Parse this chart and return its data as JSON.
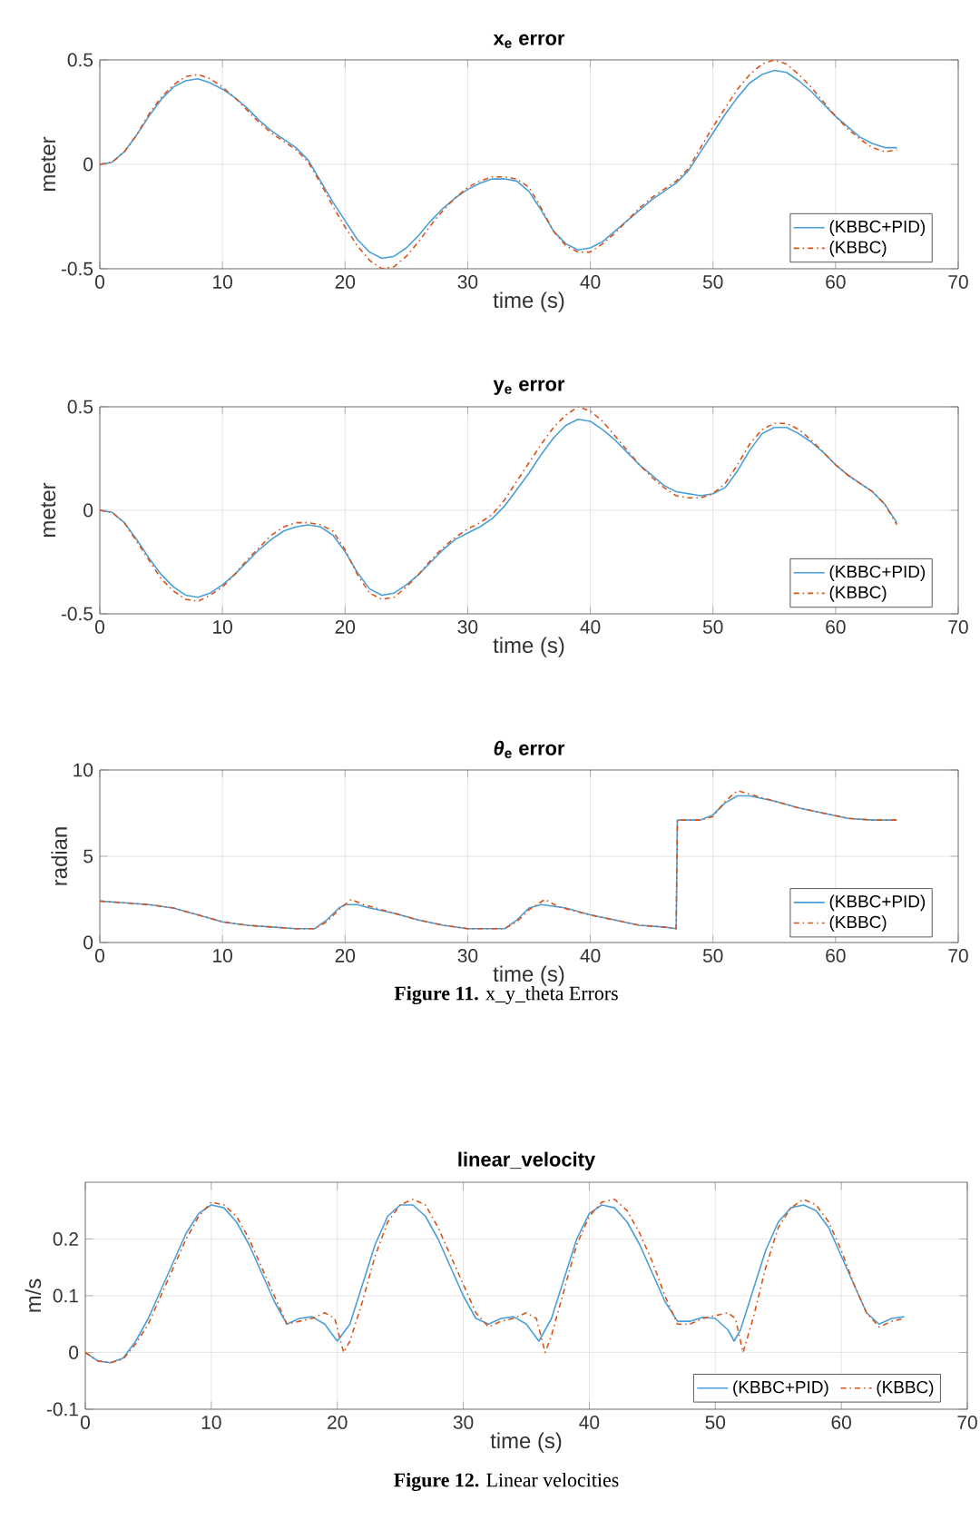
{
  "chart_data": [
    {
      "type": "line",
      "title": "x$_{e}$ error",
      "xlabel": "time (s)",
      "ylabel": "meter",
      "xlim": [
        0,
        70
      ],
      "ylim": [
        -0.5,
        0.5
      ],
      "xticks": [
        0,
        10,
        20,
        30,
        40,
        50,
        60,
        70
      ],
      "yticks": [
        -0.5,
        0,
        0.5
      ],
      "grid": true,
      "legend": "bottom right",
      "series": [
        {
          "name": "(KBBC+PID)",
          "color": "#4a9fd8",
          "line_style": "solid",
          "x": [
            0,
            1,
            2,
            3,
            4,
            5,
            6,
            7,
            8,
            9,
            10,
            11,
            12,
            13,
            14,
            15,
            16,
            17,
            18,
            19,
            20,
            21,
            22,
            23,
            24,
            25,
            26,
            27,
            28,
            29,
            30,
            31,
            32,
            33,
            34,
            35,
            36,
            37,
            38,
            39,
            40,
            41,
            42,
            43,
            44,
            45,
            46,
            47,
            48,
            49,
            50,
            51,
            52,
            53,
            54,
            55,
            56,
            57,
            58,
            59,
            60,
            61,
            62,
            63,
            64,
            65
          ],
          "values": [
            0,
            0.01,
            0.06,
            0.14,
            0.23,
            0.31,
            0.37,
            0.4,
            0.41,
            0.39,
            0.36,
            0.32,
            0.27,
            0.21,
            0.16,
            0.12,
            0.08,
            0.02,
            -0.08,
            -0.18,
            -0.27,
            -0.36,
            -0.42,
            -0.45,
            -0.44,
            -0.4,
            -0.34,
            -0.27,
            -0.21,
            -0.16,
            -0.12,
            -0.09,
            -0.07,
            -0.07,
            -0.08,
            -0.13,
            -0.22,
            -0.32,
            -0.38,
            -0.41,
            -0.4,
            -0.37,
            -0.32,
            -0.27,
            -0.22,
            -0.17,
            -0.13,
            -0.09,
            -0.03,
            0.06,
            0.15,
            0.24,
            0.32,
            0.39,
            0.43,
            0.45,
            0.44,
            0.4,
            0.35,
            0.29,
            0.23,
            0.18,
            0.13,
            0.1,
            0.08,
            0.08
          ]
        },
        {
          "name": "(KBBC)",
          "color": "#d95319",
          "line_style": "dashdot",
          "x": [
            0,
            1,
            2,
            3,
            4,
            5,
            6,
            7,
            8,
            9,
            10,
            11,
            12,
            13,
            14,
            15,
            16,
            17,
            18,
            19,
            20,
            21,
            22,
            23,
            24,
            25,
            26,
            27,
            28,
            29,
            30,
            31,
            32,
            33,
            34,
            35,
            36,
            37,
            38,
            39,
            40,
            41,
            42,
            43,
            44,
            45,
            46,
            47,
            48,
            49,
            50,
            51,
            52,
            53,
            54,
            55,
            56,
            57,
            58,
            59,
            60,
            61,
            62,
            63,
            64,
            65
          ],
          "values": [
            0,
            0.01,
            0.06,
            0.14,
            0.24,
            0.32,
            0.38,
            0.42,
            0.43,
            0.41,
            0.37,
            0.32,
            0.26,
            0.2,
            0.15,
            0.11,
            0.07,
            0.01,
            -0.09,
            -0.2,
            -0.3,
            -0.39,
            -0.46,
            -0.5,
            -0.49,
            -0.44,
            -0.37,
            -0.29,
            -0.22,
            -0.16,
            -0.11,
            -0.08,
            -0.06,
            -0.06,
            -0.07,
            -0.11,
            -0.21,
            -0.32,
            -0.39,
            -0.42,
            -0.42,
            -0.38,
            -0.33,
            -0.27,
            -0.21,
            -0.16,
            -0.12,
            -0.08,
            -0.02,
            0.08,
            0.18,
            0.27,
            0.36,
            0.43,
            0.48,
            0.5,
            0.48,
            0.43,
            0.37,
            0.3,
            0.23,
            0.17,
            0.12,
            0.08,
            0.06,
            0.07
          ]
        }
      ]
    },
    {
      "type": "line",
      "title": "y$_{e}$ error",
      "xlabel": "time (s)",
      "ylabel": "meter",
      "xlim": [
        0,
        70
      ],
      "ylim": [
        -0.5,
        0.5
      ],
      "xticks": [
        0,
        10,
        20,
        30,
        40,
        50,
        60,
        70
      ],
      "yticks": [
        -0.5,
        0,
        0.5
      ],
      "grid": true,
      "legend": "bottom right",
      "series": [
        {
          "name": "(KBBC+PID)",
          "color": "#4a9fd8",
          "line_style": "solid",
          "x": [
            0,
            1,
            2,
            3,
            4,
            5,
            6,
            7,
            8,
            9,
            10,
            11,
            12,
            13,
            14,
            15,
            16,
            17,
            18,
            19,
            20,
            21,
            22,
            23,
            24,
            25,
            26,
            27,
            28,
            29,
            30,
            31,
            32,
            33,
            34,
            35,
            36,
            37,
            38,
            39,
            40,
            41,
            42,
            43,
            44,
            45,
            46,
            47,
            48,
            49,
            50,
            51,
            52,
            53,
            54,
            55,
            56,
            57,
            58,
            59,
            60,
            61,
            62,
            63,
            64,
            65
          ],
          "values": [
            0,
            -0.01,
            -0.06,
            -0.14,
            -0.23,
            -0.31,
            -0.37,
            -0.41,
            -0.42,
            -0.4,
            -0.36,
            -0.31,
            -0.25,
            -0.19,
            -0.14,
            -0.1,
            -0.08,
            -0.07,
            -0.08,
            -0.12,
            -0.2,
            -0.3,
            -0.38,
            -0.41,
            -0.4,
            -0.36,
            -0.31,
            -0.25,
            -0.19,
            -0.14,
            -0.11,
            -0.08,
            -0.04,
            0.02,
            0.1,
            0.18,
            0.27,
            0.35,
            0.41,
            0.44,
            0.43,
            0.39,
            0.34,
            0.28,
            0.22,
            0.17,
            0.12,
            0.09,
            0.08,
            0.07,
            0.08,
            0.11,
            0.19,
            0.29,
            0.37,
            0.4,
            0.4,
            0.37,
            0.33,
            0.28,
            0.22,
            0.17,
            0.13,
            0.09,
            0.03,
            -0.06
          ]
        },
        {
          "name": "(KBBC)",
          "color": "#d95319",
          "line_style": "dashdot",
          "x": [
            0,
            1,
            2,
            3,
            4,
            5,
            6,
            7,
            8,
            9,
            10,
            11,
            12,
            13,
            14,
            15,
            16,
            17,
            18,
            19,
            20,
            21,
            22,
            23,
            24,
            25,
            26,
            27,
            28,
            29,
            30,
            31,
            32,
            33,
            34,
            35,
            36,
            37,
            38,
            39,
            40,
            41,
            42,
            43,
            44,
            45,
            46,
            47,
            48,
            49,
            50,
            51,
            52,
            53,
            54,
            55,
            56,
            57,
            58,
            59,
            60,
            61,
            62,
            63,
            64,
            65
          ],
          "values": [
            0,
            -0.01,
            -0.06,
            -0.15,
            -0.24,
            -0.33,
            -0.39,
            -0.43,
            -0.44,
            -0.41,
            -0.37,
            -0.31,
            -0.24,
            -0.18,
            -0.12,
            -0.08,
            -0.06,
            -0.06,
            -0.07,
            -0.1,
            -0.19,
            -0.31,
            -0.4,
            -0.43,
            -0.42,
            -0.37,
            -0.31,
            -0.24,
            -0.18,
            -0.13,
            -0.09,
            -0.06,
            -0.02,
            0.05,
            0.14,
            0.23,
            0.32,
            0.4,
            0.46,
            0.5,
            0.48,
            0.43,
            0.36,
            0.29,
            0.22,
            0.16,
            0.11,
            0.07,
            0.06,
            0.06,
            0.08,
            0.13,
            0.22,
            0.32,
            0.39,
            0.42,
            0.42,
            0.39,
            0.34,
            0.28,
            0.22,
            0.17,
            0.13,
            0.09,
            0.03,
            -0.07
          ]
        }
      ]
    },
    {
      "type": "line",
      "title": "*θ*$_{e}$ error",
      "xlabel": "time (s)",
      "ylabel": "radian",
      "xlim": [
        0,
        70
      ],
      "ylim": [
        0,
        10
      ],
      "xticks": [
        0,
        10,
        20,
        30,
        40,
        50,
        60,
        70
      ],
      "yticks": [
        0,
        5,
        10
      ],
      "grid": true,
      "legend": "bottom right",
      "annotations": [
        "**Figure 11.** x_y_theta Errors"
      ],
      "series": [
        {
          "name": "(KBBC+PID)",
          "color": "#4a9fd8",
          "line_style": "solid",
          "x": [
            0,
            2,
            4,
            6,
            8,
            10,
            12,
            14,
            16,
            17.5,
            18.5,
            19.5,
            20,
            21,
            22,
            24,
            26,
            28,
            30,
            33,
            34,
            35,
            36,
            37,
            38,
            40,
            42,
            44,
            46,
            47,
            47.1,
            49,
            50,
            51,
            52,
            53,
            55,
            57,
            59,
            61,
            63,
            65
          ],
          "values": [
            2.4,
            2.3,
            2.2,
            2.0,
            1.6,
            1.2,
            1.0,
            0.9,
            0.8,
            0.8,
            1.3,
            2.0,
            2.2,
            2.2,
            2.0,
            1.7,
            1.3,
            1.0,
            0.8,
            0.8,
            1.3,
            2.0,
            2.2,
            2.1,
            2.0,
            1.6,
            1.3,
            1.0,
            0.9,
            0.8,
            7.1,
            7.1,
            7.4,
            8.1,
            8.5,
            8.5,
            8.2,
            7.8,
            7.5,
            7.2,
            7.1,
            7.1
          ]
        },
        {
          "name": "(KBBC)",
          "color": "#d95319",
          "line_style": "dashdot",
          "x": [
            0,
            2,
            4,
            6,
            8,
            10,
            12,
            14,
            16,
            17.5,
            18.5,
            19.5,
            20.5,
            21.5,
            22.5,
            24,
            26,
            28,
            30,
            33,
            34,
            35,
            36.3,
            37.3,
            38.3,
            40,
            42,
            44,
            46,
            47,
            47.1,
            49,
            50,
            51,
            52,
            53,
            55,
            57,
            59,
            61,
            63,
            65
          ],
          "values": [
            2.4,
            2.3,
            2.2,
            2.0,
            1.6,
            1.2,
            1.0,
            0.9,
            0.8,
            0.8,
            1.2,
            1.9,
            2.5,
            2.2,
            2.0,
            1.7,
            1.3,
            1.0,
            0.8,
            0.8,
            1.2,
            1.9,
            2.5,
            2.1,
            1.9,
            1.6,
            1.3,
            1.0,
            0.9,
            0.8,
            7.1,
            7.1,
            7.3,
            8.2,
            8.8,
            8.6,
            8.2,
            7.8,
            7.5,
            7.2,
            7.1,
            7.1
          ]
        }
      ]
    },
    {
      "type": "line",
      "title": "linear_velocity",
      "xlabel": "time (s)",
      "ylabel": "m/s",
      "xlim": [
        0,
        70
      ],
      "ylim": [
        -0.1,
        0.3
      ],
      "xticks": [
        0,
        10,
        20,
        30,
        40,
        50,
        60,
        70
      ],
      "yticks": [
        -0.1,
        0,
        0.1,
        0.2
      ],
      "grid": true,
      "legend": "bottom right",
      "annotations": [
        "**Figure 12.** Linear velocities"
      ],
      "series": [
        {
          "name": "(KBBC+PID)",
          "color": "#4a9fd8",
          "line_style": "solid",
          "x": [
            0,
            1,
            2,
            3,
            4,
            5,
            6,
            7,
            8,
            9,
            10,
            11,
            12,
            13,
            14,
            15,
            16,
            17,
            18,
            19,
            20,
            21,
            22,
            23,
            24,
            25,
            26,
            27,
            28,
            29,
            30,
            31,
            32,
            33,
            34,
            35,
            36,
            37,
            38,
            39,
            40,
            41,
            42,
            43,
            44,
            45,
            46,
            47,
            48,
            49,
            50,
            51,
            51.5,
            52,
            53,
            54,
            55,
            56,
            57,
            58,
            59,
            60,
            61,
            62,
            63,
            64,
            65
          ],
          "values": [
            0,
            -0.015,
            -0.018,
            -0.01,
            0.02,
            0.06,
            0.11,
            0.16,
            0.21,
            0.245,
            0.26,
            0.255,
            0.23,
            0.19,
            0.14,
            0.09,
            0.05,
            0.06,
            0.063,
            0.05,
            0.02,
            0.05,
            0.12,
            0.19,
            0.24,
            0.26,
            0.26,
            0.24,
            0.2,
            0.15,
            0.1,
            0.06,
            0.05,
            0.06,
            0.063,
            0.05,
            0.02,
            0.06,
            0.13,
            0.2,
            0.245,
            0.26,
            0.255,
            0.23,
            0.19,
            0.14,
            0.09,
            0.055,
            0.055,
            0.062,
            0.06,
            0.04,
            0.02,
            0.04,
            0.11,
            0.18,
            0.23,
            0.255,
            0.26,
            0.25,
            0.22,
            0.17,
            0.12,
            0.07,
            0.05,
            0.06,
            0.063
          ]
        },
        {
          "name": "(KBBC)",
          "color": "#d95319",
          "line_style": "dashdot",
          "x": [
            0,
            1,
            2,
            3,
            4,
            5,
            6,
            7,
            8,
            9,
            10,
            11,
            12,
            13,
            14,
            15,
            16,
            17,
            18,
            19,
            19.8,
            20.5,
            21,
            22,
            23,
            24,
            25,
            26,
            27,
            28,
            29,
            30,
            31,
            32,
            33,
            34,
            35,
            35.8,
            36.5,
            37,
            38,
            39,
            40,
            41,
            42,
            43,
            44,
            45,
            46,
            47,
            48,
            49,
            50,
            51,
            51.6,
            52.2,
            53,
            54,
            55,
            56,
            57,
            58,
            59,
            60,
            61,
            62,
            63,
            64,
            65
          ],
          "values": [
            0,
            -0.015,
            -0.018,
            -0.012,
            0.015,
            0.05,
            0.1,
            0.15,
            0.2,
            0.24,
            0.265,
            0.26,
            0.24,
            0.2,
            0.15,
            0.1,
            0.05,
            0.055,
            0.06,
            0.07,
            0.06,
            0.0,
            0.02,
            0.09,
            0.17,
            0.23,
            0.26,
            0.27,
            0.26,
            0.22,
            0.17,
            0.12,
            0.07,
            0.045,
            0.055,
            0.06,
            0.07,
            0.06,
            0.0,
            0.03,
            0.11,
            0.19,
            0.24,
            0.265,
            0.27,
            0.25,
            0.21,
            0.16,
            0.1,
            0.05,
            0.05,
            0.06,
            0.065,
            0.07,
            0.06,
            0.0,
            0.06,
            0.15,
            0.22,
            0.255,
            0.27,
            0.26,
            0.23,
            0.18,
            0.12,
            0.07,
            0.045,
            0.055,
            0.06
          ]
        }
      ]
    }
  ]
}
